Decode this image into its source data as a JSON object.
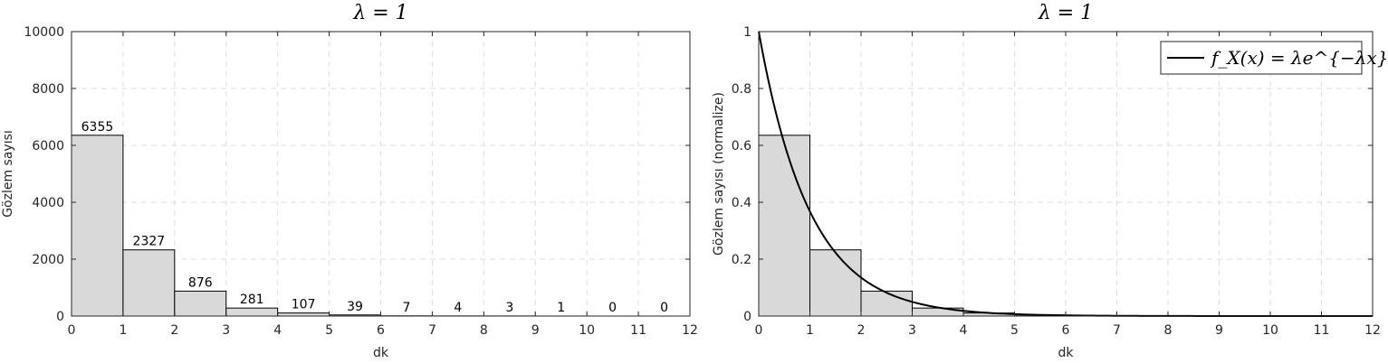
{
  "chart_data": [
    {
      "type": "bar",
      "title": "λ = 1",
      "xlabel": "dk",
      "ylabel": "Gözlem sayısı",
      "xlim": [
        0,
        12
      ],
      "ylim": [
        0,
        10000
      ],
      "xticks": [
        0,
        1,
        2,
        3,
        4,
        5,
        6,
        7,
        8,
        9,
        10,
        11,
        12
      ],
      "yticks": [
        0,
        2000,
        4000,
        6000,
        8000,
        10000
      ],
      "grid": true,
      "bins": [
        [
          0,
          1
        ],
        [
          1,
          2
        ],
        [
          2,
          3
        ],
        [
          3,
          4
        ],
        [
          4,
          5
        ],
        [
          5,
          6
        ],
        [
          6,
          7
        ],
        [
          7,
          8
        ],
        [
          8,
          9
        ],
        [
          9,
          10
        ],
        [
          10,
          11
        ],
        [
          11,
          12
        ]
      ],
      "values": [
        6355,
        2327,
        876,
        281,
        107,
        39,
        7,
        4,
        3,
        1,
        0,
        0
      ],
      "data_labels": [
        "6355",
        "2327",
        "876",
        "281",
        "107",
        "39",
        "7",
        "4",
        "3",
        "1",
        "0",
        "0"
      ],
      "bar_color": "#d9d9d9",
      "edge_color": "#000000"
    },
    {
      "type": "bar",
      "title": "λ = 1",
      "xlabel": "dk",
      "ylabel": "Gözlem sayısı (normalize)",
      "xlim": [
        0,
        12
      ],
      "ylim": [
        0,
        1
      ],
      "xticks": [
        0,
        1,
        2,
        3,
        4,
        5,
        6,
        7,
        8,
        9,
        10,
        11,
        12
      ],
      "yticks": [
        0,
        0.2,
        0.4,
        0.6,
        0.8,
        1
      ],
      "grid": true,
      "bins": [
        [
          0,
          1
        ],
        [
          1,
          2
        ],
        [
          2,
          3
        ],
        [
          3,
          4
        ],
        [
          4,
          5
        ],
        [
          5,
          6
        ],
        [
          6,
          7
        ],
        [
          7,
          8
        ],
        [
          8,
          9
        ],
        [
          9,
          10
        ],
        [
          10,
          11
        ],
        [
          11,
          12
        ]
      ],
      "values": [
        0.6355,
        0.2327,
        0.0876,
        0.0281,
        0.0107,
        0.0039,
        0.0007,
        0.0004,
        0.0003,
        0.0001,
        0,
        0
      ],
      "bar_color": "#d9d9d9",
      "edge_color": "#000000",
      "curve": {
        "name": "f_X(x) = λe^{−λx}",
        "lambda": 1,
        "color": "#000000"
      },
      "legend_position": "top-right"
    }
  ]
}
